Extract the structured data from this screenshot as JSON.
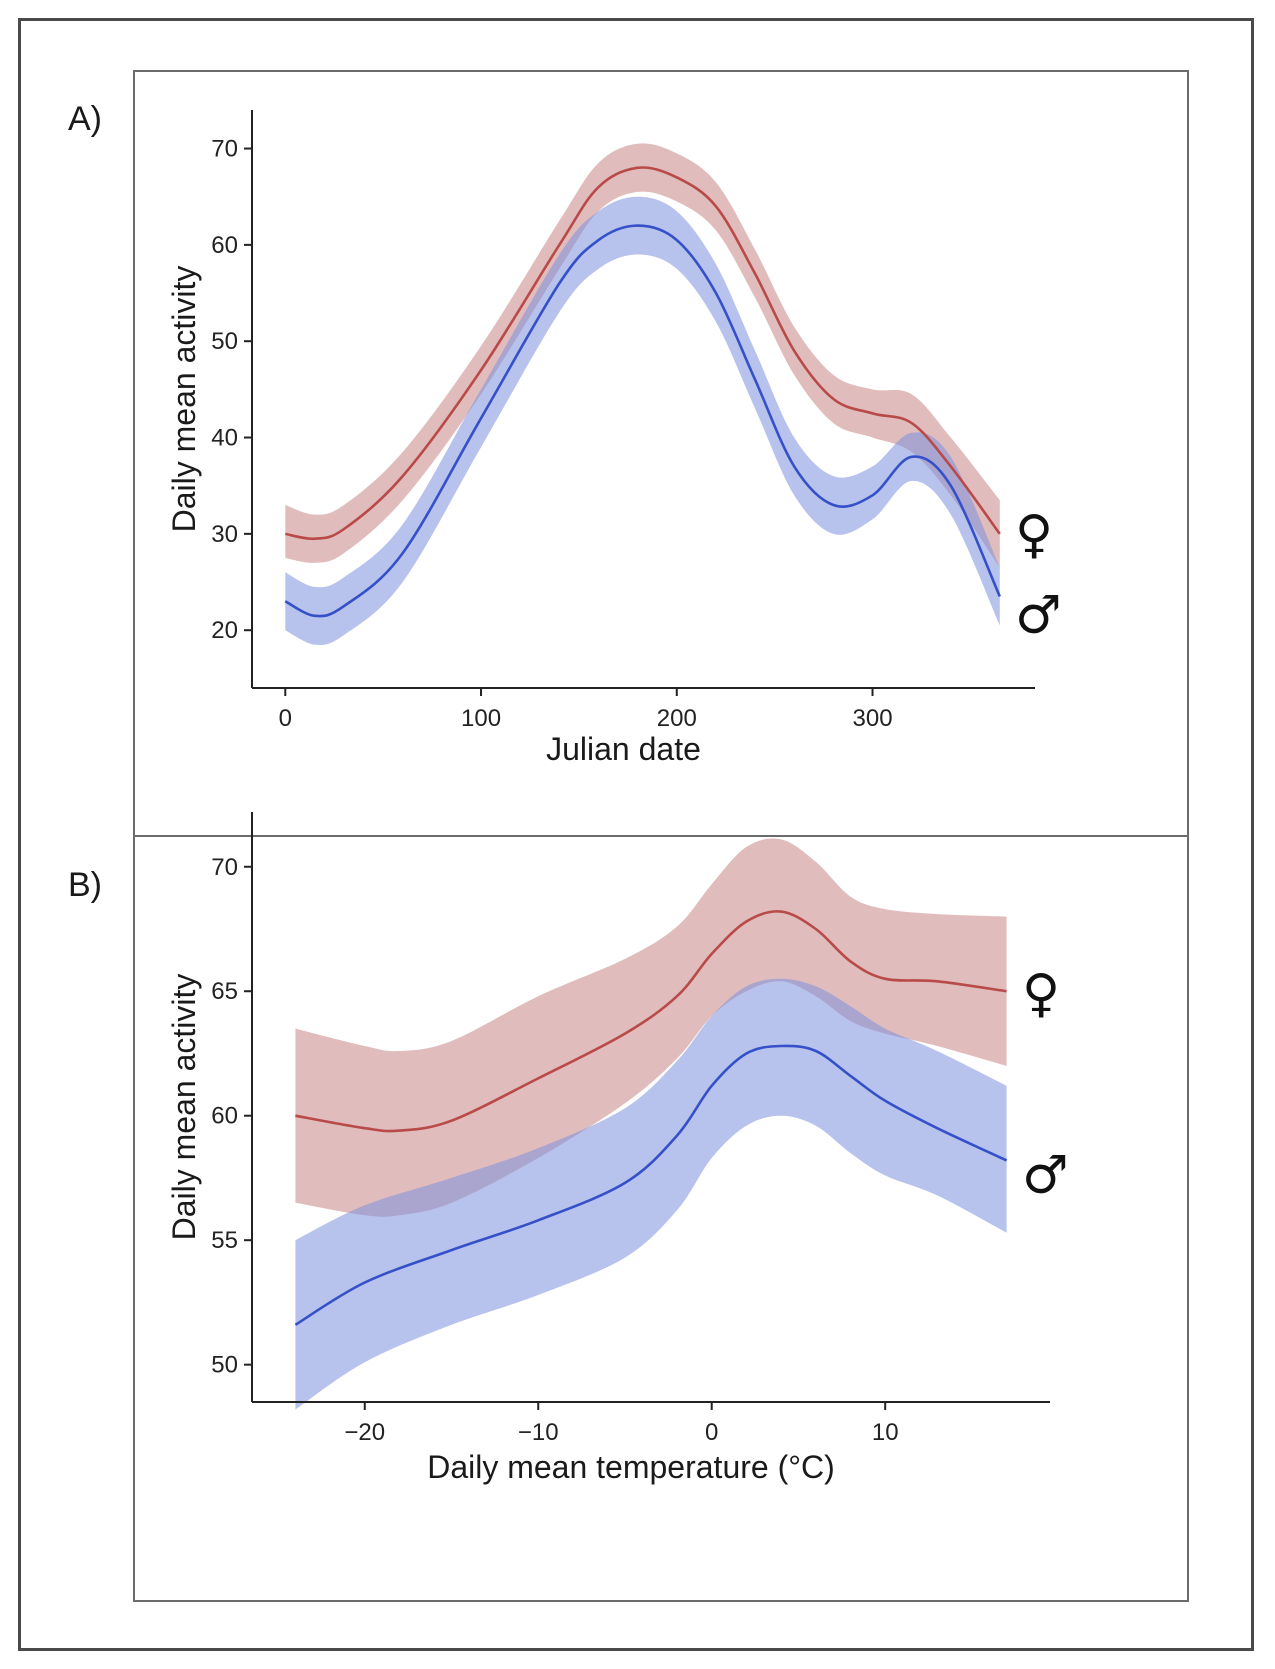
{
  "panels": [
    {
      "letter": "A)"
    },
    {
      "letter": "B)"
    }
  ],
  "colors": {
    "female": "#b94a4a",
    "male": "#3550c8",
    "female_band": "#c98585",
    "male_band": "#7d91df"
  },
  "chart_data": [
    {
      "type": "line",
      "panel": "A)",
      "xlabel": "Julian date",
      "ylabel": "Daily mean activity",
      "xlim": [
        -17,
        383
      ],
      "ylim": [
        14,
        74
      ],
      "xticks": [
        0,
        100,
        200,
        300
      ],
      "yticks": [
        20,
        30,
        40,
        50,
        60,
        70
      ],
      "grid": false,
      "series": [
        {
          "name": "♀",
          "x": [
            0,
            15,
            30,
            60,
            100,
            140,
            160,
            180,
            200,
            220,
            240,
            260,
            280,
            300,
            320,
            340,
            365
          ],
          "y": [
            30,
            29.5,
            30.5,
            36,
            47,
            60,
            66,
            68,
            67,
            64,
            57,
            49,
            44,
            42.5,
            41.5,
            37,
            30
          ],
          "lower": [
            27.5,
            27,
            28,
            33.5,
            44.5,
            57.5,
            63.5,
            65.5,
            64.5,
            61.5,
            54.5,
            46.5,
            41.5,
            40,
            38.5,
            34,
            26.5
          ],
          "upper": [
            33,
            32,
            33,
            38.5,
            49.5,
            62.5,
            68.5,
            70.5,
            69.5,
            66.5,
            59.5,
            51.5,
            46.5,
            45,
            44.5,
            40,
            33.5
          ]
        },
        {
          "name": "♂",
          "x": [
            0,
            15,
            30,
            60,
            100,
            140,
            160,
            180,
            200,
            220,
            240,
            260,
            280,
            300,
            320,
            340,
            365
          ],
          "y": [
            23,
            21.5,
            22.5,
            28,
            42,
            56,
            60.5,
            62,
            60.5,
            55,
            46,
            37,
            33,
            34,
            38,
            35,
            23.5
          ],
          "lower": [
            20,
            18.5,
            19.5,
            25,
            39,
            53,
            57.5,
            59,
            57.5,
            52,
            43,
            34,
            30,
            31.5,
            35.5,
            32,
            20.5
          ],
          "upper": [
            26,
            24.5,
            25.5,
            31,
            45,
            59,
            63.5,
            65,
            63.5,
            58,
            49,
            40,
            36,
            37,
            40.5,
            38,
            26.5
          ]
        }
      ]
    },
    {
      "type": "line",
      "panel": "B)",
      "xlabel": "Daily mean temperature (°C)",
      "ylabel": "Daily mean activity",
      "xlim": [
        -26.5,
        19.5
      ],
      "ylim": [
        48.5,
        72.2
      ],
      "xticks": [
        -20,
        -10,
        0,
        10
      ],
      "yticks": [
        50,
        55,
        60,
        65,
        70
      ],
      "grid": false,
      "series": [
        {
          "name": "♀",
          "x": [
            -24,
            -20,
            -18,
            -15,
            -10,
            -5,
            -2,
            0,
            2,
            4,
            6,
            8,
            10,
            13,
            17
          ],
          "y": [
            60,
            59.5,
            59.4,
            59.8,
            61.5,
            63.3,
            64.8,
            66.5,
            67.8,
            68.2,
            67.5,
            66.2,
            65.5,
            65.4,
            65
          ],
          "lower": [
            56.5,
            56,
            56,
            56.5,
            58.3,
            60.5,
            62.3,
            64,
            65,
            65.4,
            64.8,
            63.8,
            63.3,
            62.8,
            62
          ],
          "upper": [
            63.5,
            62.8,
            62.6,
            63,
            64.8,
            66.3,
            67.6,
            69.3,
            70.8,
            71.1,
            70.2,
            68.8,
            68.3,
            68.1,
            68
          ]
        },
        {
          "name": "♂",
          "x": [
            -24,
            -20,
            -15,
            -10,
            -5,
            -2,
            0,
            2,
            4,
            6,
            8,
            10,
            13,
            17
          ],
          "y": [
            51.6,
            53.3,
            54.6,
            55.8,
            57.3,
            59.2,
            61.2,
            62.5,
            62.8,
            62.6,
            61.6,
            60.6,
            59.5,
            58.2
          ],
          "lower": [
            48.2,
            50.1,
            51.6,
            52.8,
            54.3,
            56.2,
            58.3,
            59.6,
            60,
            59.6,
            58.5,
            57.6,
            56.8,
            55.3
          ],
          "upper": [
            55,
            56.4,
            57.5,
            58.7,
            60.3,
            62.2,
            64,
            65.2,
            65.5,
            65.2,
            64.4,
            63.5,
            62.6,
            61.2
          ]
        }
      ]
    }
  ]
}
